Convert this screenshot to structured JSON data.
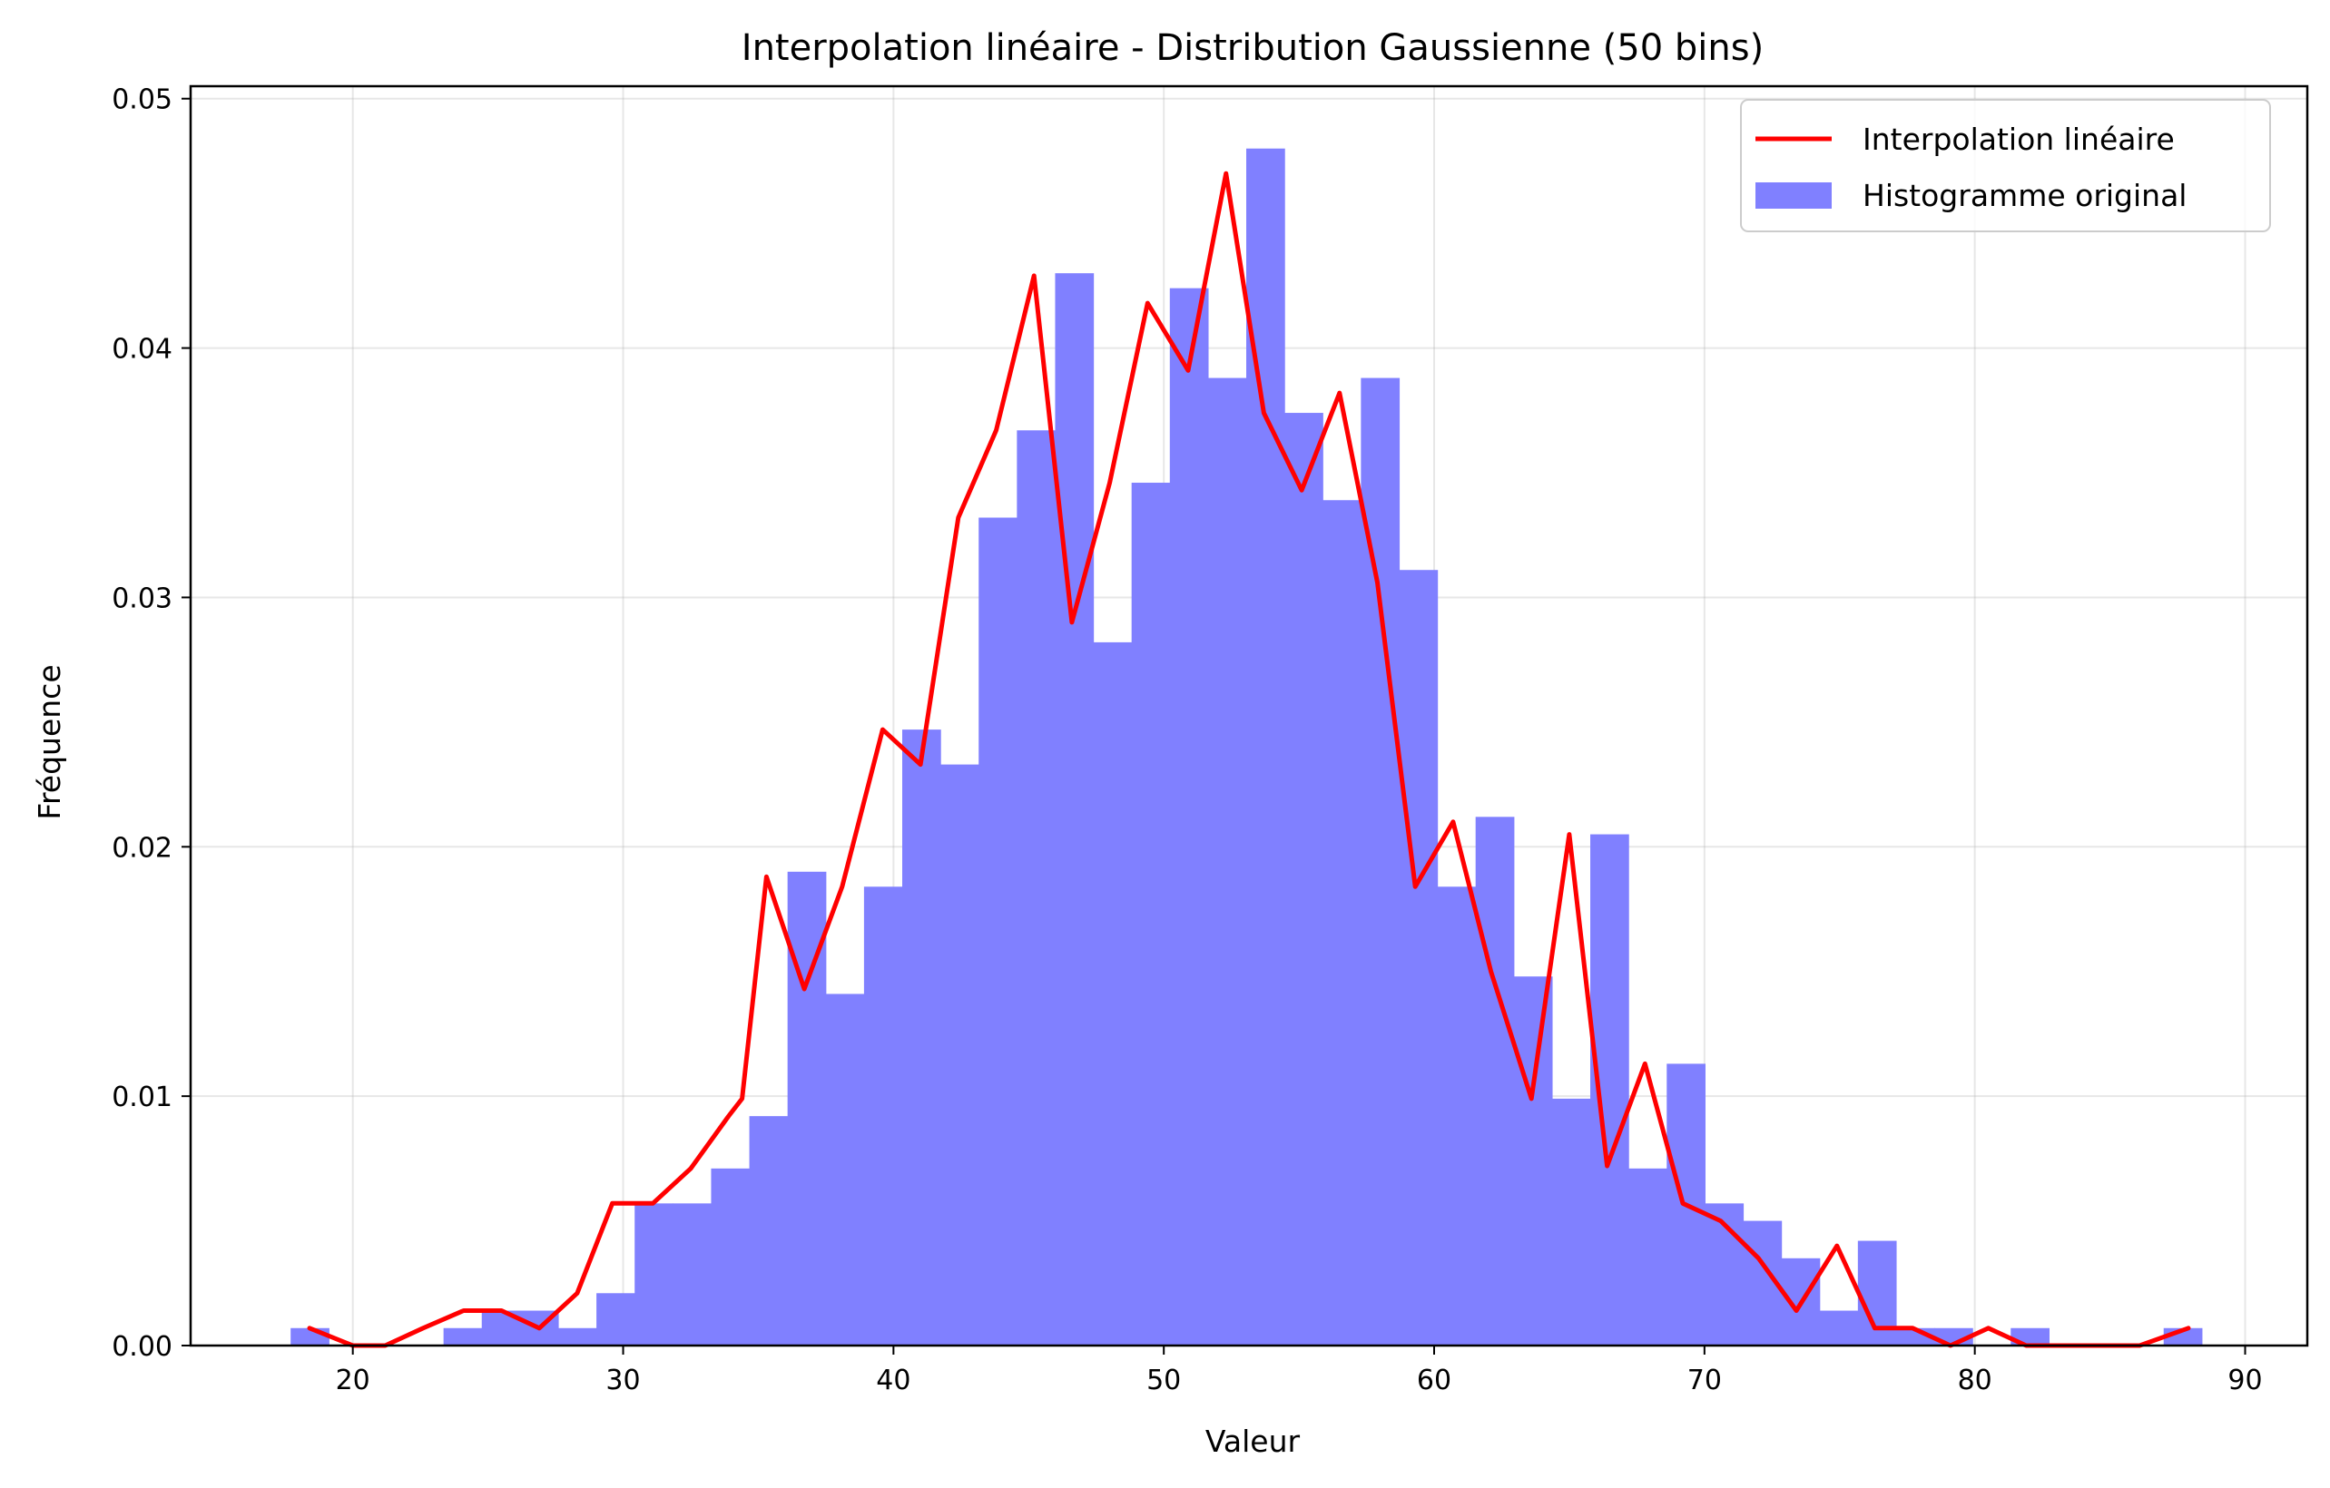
{
  "chart_data": {
    "type": "bar",
    "title": "Interpolation linéaire - Distribution Gaussienne (50 bins)",
    "xlabel": "Valeur",
    "ylabel": "Fréquence",
    "xlim": [
      14,
      92.3
    ],
    "ylim": [
      0,
      0.0505
    ],
    "xticks": [
      20,
      30,
      40,
      50,
      60,
      70,
      80,
      90
    ],
    "yticks": [
      0.0,
      0.01,
      0.02,
      0.03,
      0.04,
      0.05
    ],
    "ytick_labels": [
      "0.00",
      "0.01",
      "0.02",
      "0.03",
      "0.04",
      "0.05"
    ],
    "grid": true,
    "legend_position": "top-right",
    "histogram": {
      "name": "Histogramme original",
      "color": "#8080ff",
      "bin_start": 17.7,
      "bin_width": 1.414,
      "heights": [
        0.0007,
        0.0,
        0.0,
        0.0,
        0.0007,
        0.0014,
        0.0014,
        0.0007,
        0.0021,
        0.0057,
        0.0057,
        0.0071,
        0.0092,
        0.019,
        0.0141,
        0.0184,
        0.0247,
        0.0233,
        0.0332,
        0.0367,
        0.043,
        0.0282,
        0.0346,
        0.0424,
        0.0388,
        0.048,
        0.0374,
        0.0339,
        0.0388,
        0.0311,
        0.0184,
        0.0212,
        0.0148,
        0.0099,
        0.0205,
        0.0071,
        0.0113,
        0.0057,
        0.005,
        0.0035,
        0.0014,
        0.0042,
        0.0007,
        0.0007,
        0.0,
        0.0007,
        0.0,
        0.0,
        0.0,
        0.0007
      ]
    },
    "interpolation": {
      "name": "Interpolation linéaire",
      "color": "#ff0000",
      "x": [
        18.4,
        20.0,
        21.2,
        22.6,
        24.1,
        25.5,
        26.9,
        28.3,
        29.6,
        31.1,
        32.5,
        33.9,
        34.4,
        35.3,
        36.7,
        38.1,
        39.6,
        41.0,
        42.4,
        43.8,
        45.2,
        46.6,
        48.0,
        49.4,
        50.9,
        52.3,
        53.7,
        55.1,
        56.5,
        57.9,
        59.3,
        60.7,
        62.1,
        63.6,
        65.0,
        66.4,
        67.8,
        69.2,
        70.6,
        72.0,
        73.4,
        74.9,
        76.3,
        77.7,
        79.1,
        80.5,
        81.9,
        83.3,
        84.7,
        86.1,
        87.9
      ],
      "y": [
        0.0007,
        0.0,
        0.0,
        0.0007,
        0.0014,
        0.0014,
        0.0007,
        0.0021,
        0.0057,
        0.0057,
        0.0071,
        0.0092,
        0.0099,
        0.0188,
        0.0143,
        0.0184,
        0.0247,
        0.0233,
        0.0332,
        0.0367,
        0.0429,
        0.029,
        0.0346,
        0.0418,
        0.0391,
        0.047,
        0.0374,
        0.0343,
        0.0382,
        0.0306,
        0.0184,
        0.021,
        0.015,
        0.0099,
        0.0205,
        0.0072,
        0.0113,
        0.0057,
        0.005,
        0.0035,
        0.0014,
        0.004,
        0.0007,
        0.0007,
        0.0,
        0.0007,
        0.0,
        0.0,
        0.0,
        0.0,
        0.0007
      ]
    }
  }
}
